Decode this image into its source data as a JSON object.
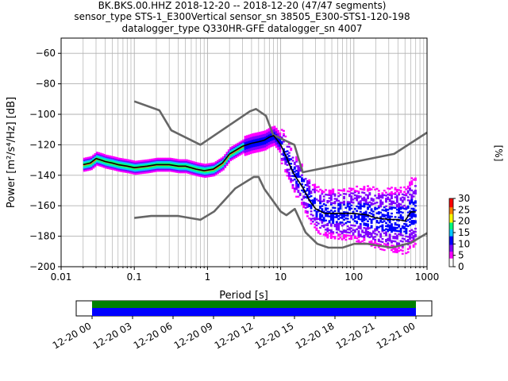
{
  "chart_data": {
    "type": "heatmap",
    "title_lines": [
      "BK.BKS.00.HHZ   2018-12-20 -- 2018-12-20  (47/47 segments)",
      "sensor_type STS-1_E300Vertical sensor_sn 38505_E300-STS1-120-198",
      "datalogger_type Q330HR-GFE datalogger_sn 4007"
    ],
    "xlabel": "Period [s]",
    "ylabel": "Power [m²/s⁴/Hz] [dB]",
    "x_scale": "log",
    "xlim": [
      0.01,
      1000
    ],
    "ylim": [
      -200,
      -50
    ],
    "x_ticks": [
      0.01,
      0.1,
      1,
      10,
      100,
      1000
    ],
    "x_tick_labels": [
      "0.01",
      "0.1",
      "1",
      "10",
      "100",
      "1000"
    ],
    "y_ticks": [
      -200,
      -180,
      -160,
      -140,
      -120,
      -100,
      -80,
      -60
    ],
    "y_tick_labels": [
      "−200",
      "−180",
      "−160",
      "−140",
      "−120",
      "−100",
      "−80",
      "−60"
    ],
    "grid": true,
    "colorbar": {
      "label": "[%]",
      "range": [
        0,
        30
      ],
      "ticks": [
        0,
        5,
        10,
        15,
        20,
        25,
        30
      ],
      "tick_labels": [
        "0",
        "5",
        "10",
        "15",
        "20",
        "25",
        "30"
      ],
      "colors": [
        "#ffffff",
        "#ff00ff",
        "#8000ff",
        "#0000ff",
        "#00c8ff",
        "#00ff80",
        "#ffff00",
        "#ff8000",
        "#ff0000"
      ]
    },
    "series": [
      {
        "name": "NHNM",
        "color": "#666666",
        "x": [
          0.1,
          0.22,
          0.32,
          0.8,
          3.8,
          4.6,
          6.3,
          7.9,
          15.4,
          20,
          354.8,
          1000
        ],
        "y": [
          -91.5,
          -97.4,
          -110.5,
          -120,
          -98,
          -96.5,
          -101,
          -113.5,
          -120,
          -138,
          -126,
          -112
        ]
      },
      {
        "name": "NLNM",
        "color": "#666666",
        "x": [
          0.1,
          0.17,
          0.4,
          0.8,
          1.24,
          2.4,
          4.3,
          5,
          6,
          10,
          12,
          15.6,
          21.9,
          31.6,
          45,
          70,
          101,
          154,
          328,
          600,
          1000
        ],
        "y": [
          -168,
          -166.7,
          -166.7,
          -169.2,
          -163.7,
          -148.6,
          -141.1,
          -141.1,
          -149,
          -163.8,
          -166.2,
          -162.1,
          -177.5,
          -185,
          -187.5,
          -187.5,
          -185,
          -185,
          -187.5,
          -184.4,
          -178
        ]
      },
      {
        "name": "mean",
        "color": "#000000",
        "x": [
          0.02,
          0.025,
          0.03,
          0.035,
          0.04,
          0.05,
          0.06,
          0.08,
          0.1,
          0.15,
          0.2,
          0.3,
          0.4,
          0.5,
          0.7,
          0.9,
          1.2,
          1.6,
          2,
          3,
          4,
          5,
          6,
          7,
          8,
          9,
          10,
          12,
          14,
          16,
          20,
          25,
          30,
          40,
          50,
          70,
          100,
          150,
          200,
          300,
          400,
          500,
          600,
          700
        ],
        "y": [
          -133,
          -132,
          -129,
          -130,
          -131,
          -132,
          -133,
          -134,
          -135,
          -134,
          -133,
          -133,
          -134,
          -134,
          -136,
          -137,
          -136,
          -132,
          -126,
          -121,
          -119,
          -118,
          -117,
          -115,
          -114,
          -117,
          -120,
          -128,
          -136,
          -141,
          -148,
          -157,
          -162,
          -165,
          -165,
          -165,
          -165,
          -166,
          -168,
          -169,
          -169,
          -170,
          -164,
          -164
        ]
      }
    ]
  },
  "time_axis": {
    "tick_labels": [
      "12-20 00",
      "12-20 03",
      "12-20 06",
      "12-20 09",
      "12-20 12",
      "12-20 15",
      "12-20 18",
      "12-20 21",
      "12-21 00"
    ],
    "bar_colors": [
      "#008000",
      "#0000ff"
    ]
  }
}
